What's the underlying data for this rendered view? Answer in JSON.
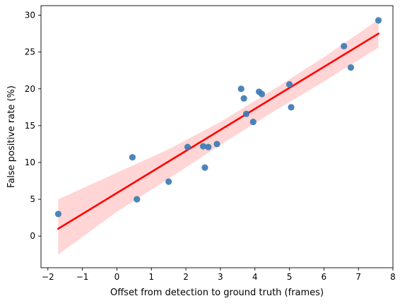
{
  "chart_data": {
    "type": "scatter",
    "xlabel": "Offset from detection to ground truth (frames)",
    "ylabel": "False positive rate (%)",
    "xlim": [
      -2.2,
      8.0
    ],
    "ylim": [
      -4.3,
      31.3
    ],
    "xticks": [
      -2,
      -1,
      0,
      1,
      2,
      3,
      4,
      5,
      6,
      7,
      8
    ],
    "yticks": [
      0,
      5,
      10,
      15,
      20,
      25,
      30
    ],
    "grid": false,
    "colors": {
      "points": "#3b7bb5",
      "regression_line": "#ff0000",
      "confidence_band": "#ffd0d0"
    },
    "points": [
      {
        "x": -1.7,
        "y": 3.0
      },
      {
        "x": 0.45,
        "y": 10.7
      },
      {
        "x": 0.58,
        "y": 5.0
      },
      {
        "x": 1.5,
        "y": 7.4
      },
      {
        "x": 2.05,
        "y": 12.1
      },
      {
        "x": 2.5,
        "y": 12.2
      },
      {
        "x": 2.55,
        "y": 9.3
      },
      {
        "x": 2.65,
        "y": 12.1
      },
      {
        "x": 2.9,
        "y": 12.5
      },
      {
        "x": 3.6,
        "y": 20.0
      },
      {
        "x": 3.68,
        "y": 18.7
      },
      {
        "x": 3.75,
        "y": 16.6
      },
      {
        "x": 3.95,
        "y": 15.5
      },
      {
        "x": 4.12,
        "y": 19.6
      },
      {
        "x": 4.2,
        "y": 19.3
      },
      {
        "x": 5.0,
        "y": 20.6
      },
      {
        "x": 5.05,
        "y": 17.5
      },
      {
        "x": 6.58,
        "y": 25.8
      },
      {
        "x": 6.78,
        "y": 22.9
      },
      {
        "x": 7.58,
        "y": 29.3
      }
    ],
    "regression": {
      "x": [
        -1.7,
        7.58
      ],
      "y": [
        1.0,
        27.5
      ]
    },
    "confidence_band": {
      "x": [
        -1.7,
        0.0,
        1.5,
        3.0,
        4.5,
        6.0,
        7.58
      ],
      "upper": [
        5.0,
        8.6,
        11.8,
        15.5,
        19.8,
        24.3,
        29.4
      ],
      "lower": [
        -2.5,
        3.3,
        7.8,
        12.4,
        16.8,
        21.0,
        25.6
      ]
    }
  }
}
